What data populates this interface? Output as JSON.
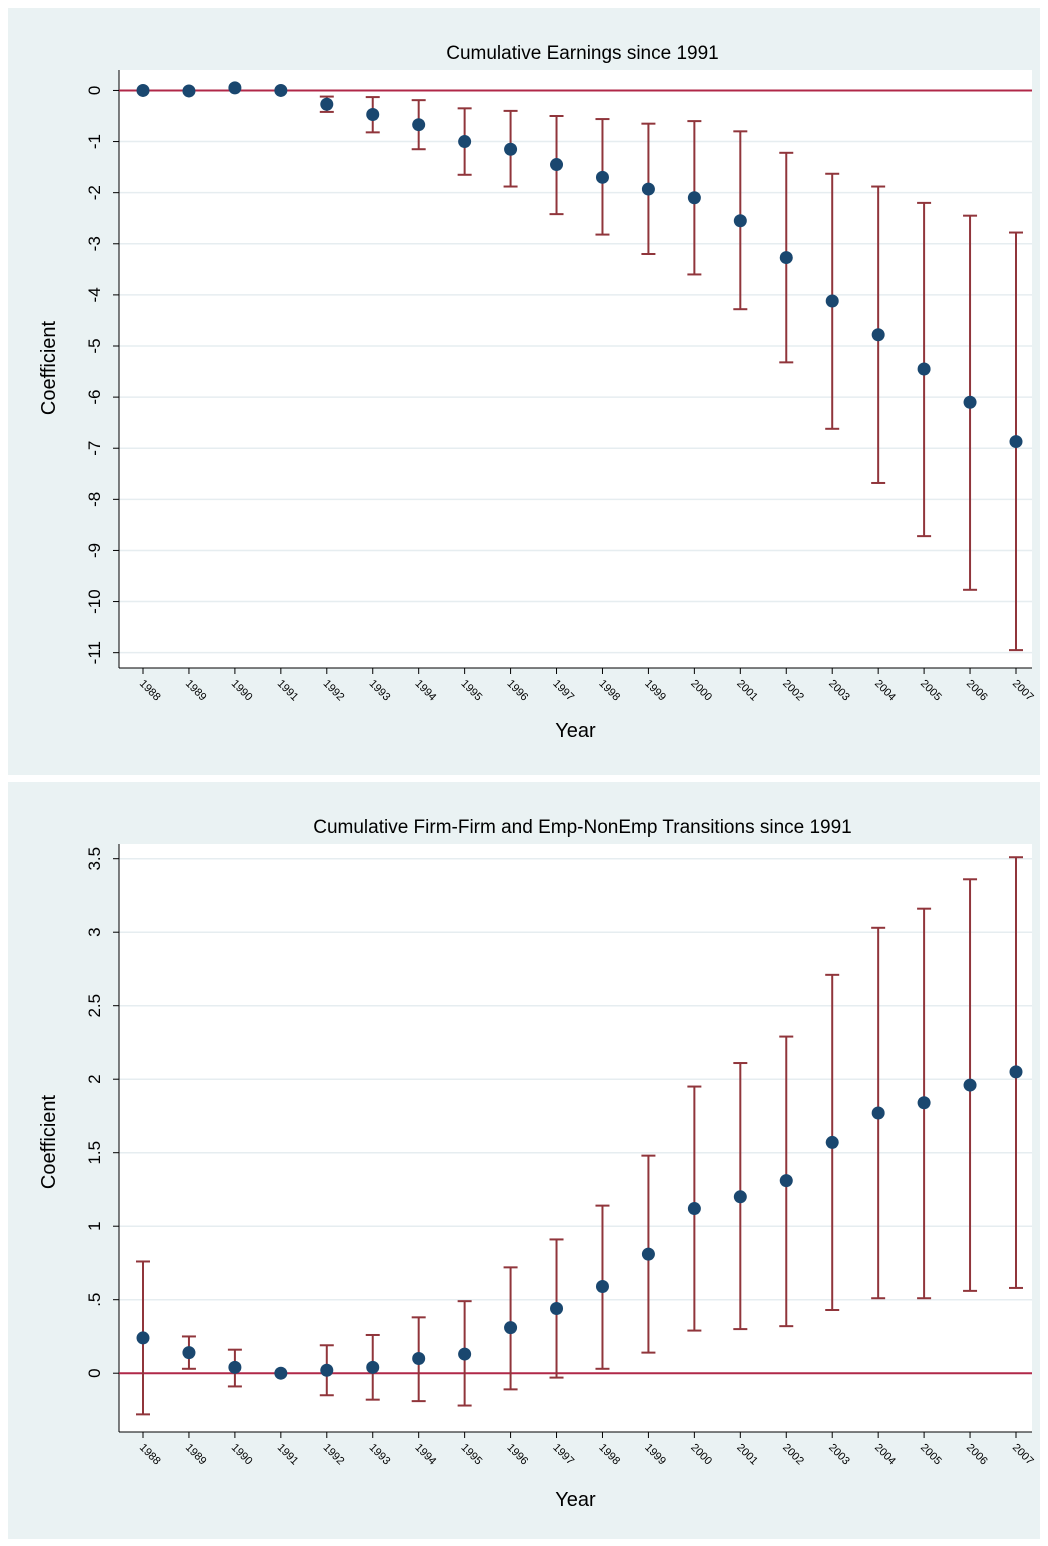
{
  "colors": {
    "panel_bg": "#eaf2f3",
    "plot_bg": "#ffffff",
    "grid": "#e6edf0",
    "point": "#1a476f",
    "ci": "#90353b",
    "ref_line": "#b02848"
  },
  "chart_data": [
    {
      "type": "scatter",
      "title": "Cumulative Earnings since 1991",
      "xlabel": "Year",
      "ylabel": "Coefficient",
      "categories": [
        "1988",
        "1989",
        "1990",
        "1991",
        "1992",
        "1993",
        "1994",
        "1995",
        "1996",
        "1997",
        "1998",
        "1999",
        "2000",
        "2001",
        "2002",
        "2003",
        "2004",
        "2005",
        "2006",
        "2007"
      ],
      "ylim": [
        -11.3,
        0.4
      ],
      "yticks": [
        0,
        -1,
        -2,
        -3,
        -4,
        -5,
        -6,
        -7,
        -8,
        -9,
        -10,
        -11
      ],
      "ytick_labels": [
        "0",
        "-1",
        "-2",
        "-3",
        "-4",
        "-5",
        "-6",
        "-7",
        "-8",
        "-9",
        "-10",
        "-11"
      ],
      "grid": true,
      "ref_line": 0,
      "series": [
        {
          "values": [
            0,
            -0.01,
            0.05,
            0,
            -0.27,
            -0.47,
            -0.67,
            -1.0,
            -1.15,
            -1.45,
            -1.7,
            -1.93,
            -2.1,
            -2.55,
            -3.27,
            -4.12,
            -4.78,
            -5.45,
            -6.1,
            -6.87
          ],
          "ci_low": [
            0,
            -0.01,
            0.05,
            0,
            -0.42,
            -0.82,
            -1.15,
            -1.65,
            -1.88,
            -2.42,
            -2.82,
            -3.2,
            -3.6,
            -4.28,
            -5.32,
            -6.62,
            -7.68,
            -8.72,
            -9.77,
            -10.95
          ],
          "ci_high": [
            0,
            -0.01,
            0.05,
            0,
            -0.12,
            -0.13,
            -0.19,
            -0.35,
            -0.4,
            -0.5,
            -0.56,
            -0.65,
            -0.6,
            -0.8,
            -1.22,
            -1.63,
            -1.88,
            -2.2,
            -2.45,
            -2.78
          ]
        }
      ]
    },
    {
      "type": "scatter",
      "title": "Cumulative Firm-Firm and Emp-NonEmp Transitions since 1991",
      "xlabel": "Year",
      "ylabel": "Coefficient",
      "categories": [
        "1988",
        "1989",
        "1990",
        "1991",
        "1992",
        "1993",
        "1994",
        "1995",
        "1996",
        "1997",
        "1998",
        "1999",
        "2000",
        "2001",
        "2002",
        "2003",
        "2004",
        "2005",
        "2006",
        "2007"
      ],
      "ylim": [
        -0.4,
        3.6
      ],
      "yticks": [
        0,
        0.5,
        1,
        1.5,
        2,
        2.5,
        3,
        3.5
      ],
      "ytick_labels": [
        "0",
        ".5",
        "1",
        "1.5",
        "2",
        "2.5",
        "3",
        "3.5"
      ],
      "grid": true,
      "ref_line": 0,
      "series": [
        {
          "values": [
            0.24,
            0.14,
            0.04,
            0,
            0.02,
            0.04,
            0.1,
            0.13,
            0.31,
            0.44,
            0.59,
            0.81,
            1.12,
            1.2,
            1.31,
            1.57,
            1.77,
            1.84,
            1.96,
            2.05
          ],
          "ci_low": [
            -0.28,
            0.03,
            -0.09,
            0,
            -0.15,
            -0.18,
            -0.19,
            -0.22,
            -0.11,
            -0.03,
            0.03,
            0.14,
            0.29,
            0.3,
            0.32,
            0.43,
            0.51,
            0.51,
            0.56,
            0.58
          ],
          "ci_high": [
            0.76,
            0.25,
            0.16,
            0,
            0.19,
            0.26,
            0.38,
            0.49,
            0.72,
            0.91,
            1.14,
            1.48,
            1.95,
            2.11,
            2.29,
            2.71,
            3.03,
            3.16,
            3.36,
            3.51
          ]
        }
      ]
    }
  ]
}
